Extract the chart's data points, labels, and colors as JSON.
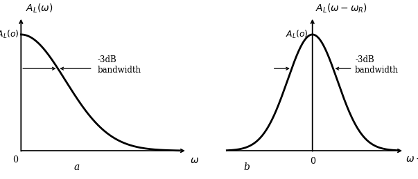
{
  "bg_color": "#ffffff",
  "line_color": "#000000",
  "panel_a": {
    "sigma": 0.28,
    "xlim": [
      -0.08,
      1.1
    ],
    "ylim": [
      -0.12,
      1.22
    ]
  },
  "panel_b": {
    "sigma": 0.32,
    "xlim": [
      -1.15,
      1.25
    ],
    "ylim": [
      -0.12,
      1.22
    ]
  },
  "lw_curve": 2.0,
  "lw_axis": 1.3,
  "lw_arrow": 0.9,
  "font_size_title": 10,
  "font_size_label": 9,
  "font_size_anno": 8.5,
  "font_size_letter": 10
}
